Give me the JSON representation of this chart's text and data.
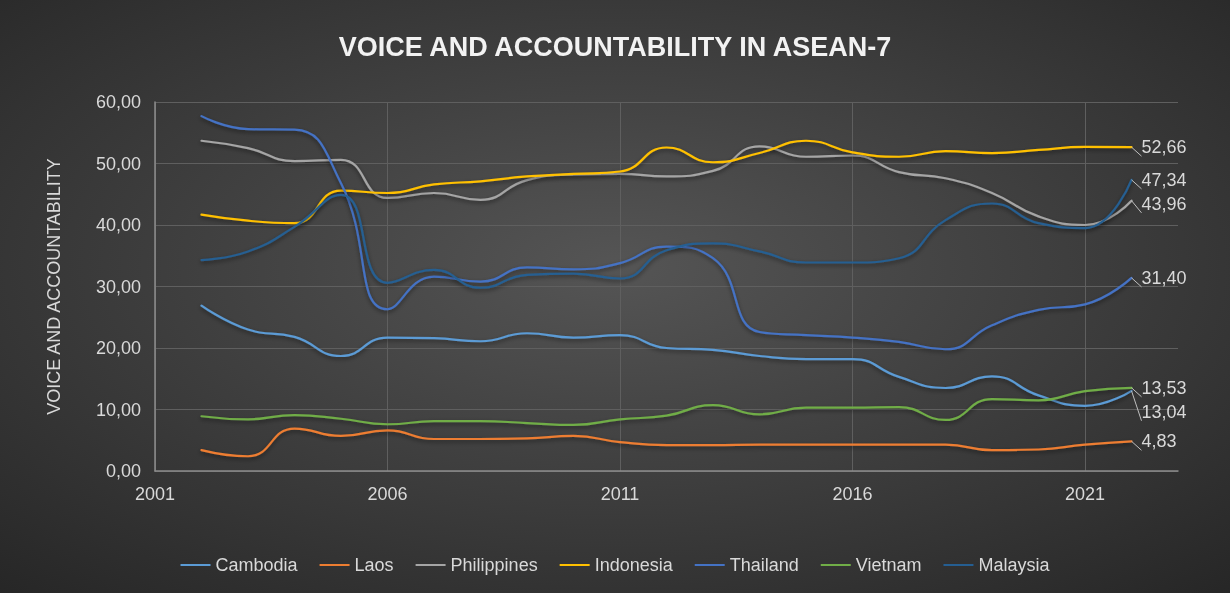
{
  "chart_data": {
    "type": "line",
    "title": "VOICE AND ACCOUNTABILITY IN ASEAN-7",
    "ylabel": "VOICE AND ACCOUNTABILITY",
    "x": [
      2002,
      2003,
      2004,
      2005,
      2006,
      2007,
      2008,
      2009,
      2010,
      2011,
      2012,
      2013,
      2014,
      2015,
      2016,
      2017,
      2018,
      2019,
      2020,
      2021,
      2022
    ],
    "series": [
      {
        "name": "Cambodia",
        "color": "#5b9bd5",
        "values": [
          26.9,
          23.0,
          21.8,
          18.7,
          21.7,
          21.6,
          21.1,
          22.4,
          21.7,
          22.1,
          20.0,
          19.7,
          18.7,
          18.2,
          18.2,
          15.3,
          13.5,
          15.4,
          12.3,
          10.6,
          13.04
        ],
        "value_labels": [
          null,
          null,
          null,
          null,
          null,
          null,
          null,
          null,
          null,
          null,
          null,
          null,
          null,
          null,
          null,
          null,
          null,
          null,
          null,
          null,
          "13,04"
        ]
      },
      {
        "name": "Laos",
        "color": "#ed7d31",
        "values": [
          3.4,
          2.4,
          6.9,
          5.7,
          6.6,
          5.2,
          5.2,
          5.3,
          5.7,
          4.7,
          4.2,
          4.2,
          4.3,
          4.3,
          4.3,
          4.3,
          4.3,
          3.4,
          3.5,
          4.3,
          4.83
        ],
        "value_labels": [
          null,
          null,
          null,
          null,
          null,
          null,
          null,
          null,
          null,
          null,
          null,
          null,
          null,
          null,
          null,
          null,
          null,
          null,
          null,
          null,
          "4,83"
        ]
      },
      {
        "name": "Philippines",
        "color": "#a5a5a5",
        "values": [
          53.7,
          52.5,
          50.4,
          50.6,
          44.4,
          45.2,
          44.1,
          47.3,
          48.2,
          48.3,
          47.9,
          48.8,
          52.8,
          51.1,
          51.3,
          48.6,
          47.6,
          45.2,
          41.4,
          40.0,
          43.96
        ],
        "value_labels": [
          null,
          null,
          null,
          null,
          null,
          null,
          null,
          null,
          null,
          null,
          null,
          null,
          null,
          null,
          null,
          null,
          null,
          null,
          null,
          null,
          "43,96"
        ]
      },
      {
        "name": "Indonesia",
        "color": "#ffc000",
        "values": [
          41.7,
          40.7,
          40.3,
          45.6,
          45.2,
          46.6,
          47.1,
          47.9,
          48.3,
          48.7,
          52.6,
          50.2,
          51.7,
          53.7,
          51.8,
          51.1,
          52.0,
          51.7,
          52.2,
          52.7,
          52.66
        ],
        "value_labels": [
          null,
          null,
          null,
          null,
          null,
          null,
          null,
          null,
          null,
          null,
          null,
          null,
          null,
          null,
          null,
          null,
          null,
          null,
          null,
          null,
          "52,66"
        ]
      },
      {
        "name": "Thailand",
        "color": "#4472c4",
        "values": [
          57.7,
          55.6,
          55.5,
          46.8,
          26.3,
          31.6,
          30.8,
          33.1,
          32.8,
          33.8,
          36.5,
          34.6,
          22.6,
          22.1,
          21.7,
          21.0,
          19.8,
          23.7,
          26.2,
          27.1,
          31.4
        ],
        "value_labels": [
          null,
          null,
          null,
          null,
          null,
          null,
          null,
          null,
          null,
          null,
          null,
          null,
          null,
          null,
          null,
          null,
          null,
          null,
          null,
          null,
          "31,40"
        ]
      },
      {
        "name": "Vietnam",
        "color": "#70ad47",
        "values": [
          8.9,
          8.4,
          9.1,
          8.5,
          7.6,
          8.1,
          8.1,
          7.8,
          7.5,
          8.4,
          9.0,
          10.7,
          9.2,
          10.3,
          10.3,
          10.4,
          8.3,
          11.7,
          11.5,
          13.0,
          13.53
        ],
        "value_labels": [
          null,
          null,
          null,
          null,
          null,
          null,
          null,
          null,
          null,
          null,
          null,
          null,
          null,
          null,
          null,
          null,
          null,
          null,
          null,
          null,
          "13,53"
        ]
      },
      {
        "name": "Malaysia",
        "color": "#255e91",
        "values": [
          34.3,
          35.7,
          39.7,
          44.9,
          30.6,
          32.7,
          29.8,
          31.9,
          32.1,
          31.3,
          35.9,
          37.0,
          35.7,
          33.9,
          33.9,
          34.6,
          40.8,
          43.5,
          40.3,
          39.5,
          47.34
        ],
        "value_labels": [
          null,
          null,
          null,
          null,
          null,
          null,
          null,
          null,
          null,
          null,
          null,
          null,
          null,
          null,
          null,
          null,
          null,
          null,
          null,
          null,
          "47,34"
        ]
      }
    ],
    "xlim": [
      2001,
      2023
    ],
    "xticks": [
      2001,
      2006,
      2011,
      2016,
      2021
    ],
    "ylim": [
      0,
      60
    ],
    "yticks": [
      {
        "value": 0,
        "label": "0,00"
      },
      {
        "value": 10,
        "label": "10,00"
      },
      {
        "value": 20,
        "label": "20,00"
      },
      {
        "value": 30,
        "label": "30,00"
      },
      {
        "value": 40,
        "label": "40,00"
      },
      {
        "value": 50,
        "label": "50,00"
      },
      {
        "value": 60,
        "label": "60,00"
      }
    ],
    "grid": true,
    "legend": "bottom",
    "marker": "none",
    "line_style": "solid"
  }
}
